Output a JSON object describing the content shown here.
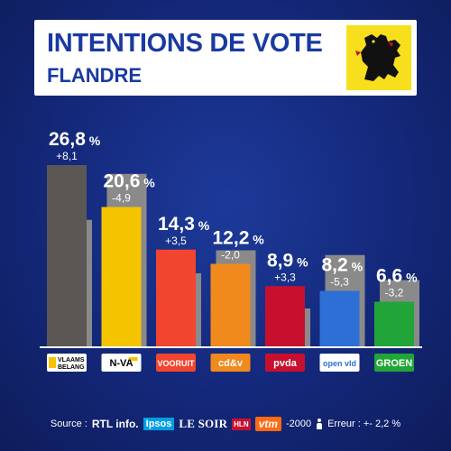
{
  "header": {
    "title": "INTENTIONS DE VOTE",
    "subtitle": "FLANDRE"
  },
  "colors": {
    "background": "#14287a",
    "header_text": "#1a3aa0",
    "previous_bar": "#8a8a8a"
  },
  "chart_data": {
    "type": "bar",
    "title": "INTENTIONS DE VOTE",
    "subtitle": "FLANDRE",
    "ylim": [
      0,
      28
    ],
    "categories": [
      "VLAAMS BELANG",
      "N-VA",
      "VOORUIT",
      "cd&v",
      "pvda",
      "open vld",
      "GROEN"
    ],
    "series": [
      {
        "values": [
          26.8,
          20.6,
          14.3,
          12.2,
          8.9,
          8.2,
          6.6
        ],
        "labels": [
          "26,8",
          "20,6",
          "14,3",
          "12,2",
          "8,9",
          "8,2",
          "6,6"
        ],
        "colors": [
          "#5b5754",
          "#f5c400",
          "#f2452f",
          "#f08a1d",
          "#c8102e",
          "#2e6fd6",
          "#22a538"
        ]
      },
      {
        "values": [
          18.7,
          25.5,
          10.8,
          14.2,
          5.6,
          13.5,
          9.8
        ]
      }
    ],
    "changes": [
      "+8,1",
      "-4,9",
      "+3,5",
      "-2,0",
      "+3,3",
      "-5,3",
      "-3,2"
    ],
    "percent_sign": "%"
  },
  "party_logos": [
    {
      "name": "VLAAMS BELANG",
      "line1": "VLAAMS",
      "line2": "BELANG",
      "bg": "#ffffff",
      "fg": "#000000",
      "accent": "#f5c400"
    },
    {
      "name": "N-VA",
      "text": "N-VA",
      "bg": "#ffffff",
      "fg": "#000000",
      "accent": "#f5c400"
    },
    {
      "name": "VOORUIT",
      "text": "VOORUIT",
      "bg": "#f2452f",
      "fg": "#ffffff"
    },
    {
      "name": "cd&v",
      "text": "cd&v",
      "bg": "#f08a1d",
      "fg": "#ffffff"
    },
    {
      "name": "pvda",
      "text": "pvda",
      "bg": "#c8102e",
      "fg": "#ffffff"
    },
    {
      "name": "open vld",
      "text": "open vld",
      "bg": "#ffffff",
      "fg": "#2e6fd6"
    },
    {
      "name": "GROEN",
      "text": "GROEN",
      "bg": "#22a538",
      "fg": "#ffffff"
    }
  ],
  "footer": {
    "source_label": "Source :",
    "rtl": "RTL info.",
    "ipsos": "Ipsos",
    "lesoir": "LE SOIR",
    "hln": "HLN",
    "vtm": "vtm",
    "sample": "-2000",
    "error": "Erreur : +- 2,2 %"
  }
}
